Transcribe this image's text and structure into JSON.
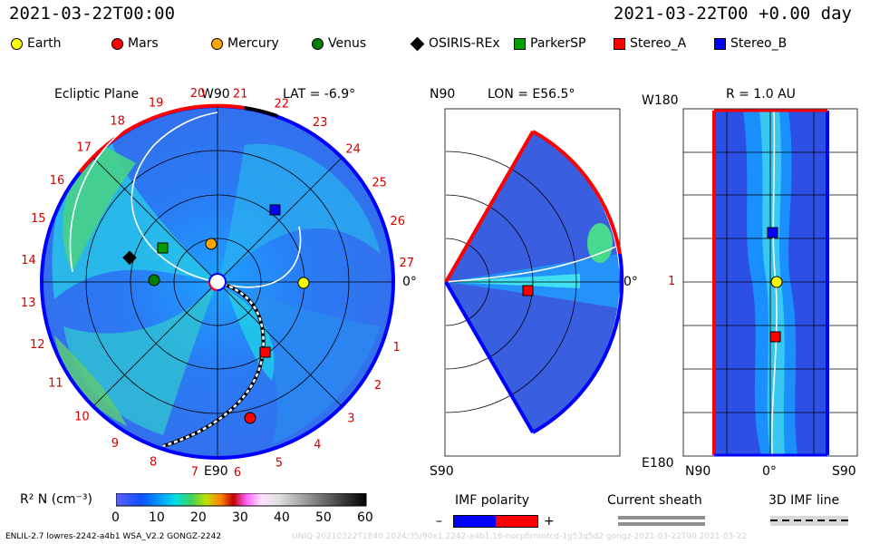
{
  "header": {
    "time_left": "2021-03-22T00:00",
    "time_right": "2021-03-22T00 +0.00 day"
  },
  "legend": [
    {
      "label": "Earth",
      "color": "#ffff00",
      "shape": "circle"
    },
    {
      "label": "Mars",
      "color": "#ff0000",
      "shape": "circle"
    },
    {
      "label": "Mercury",
      "color": "#ffa500",
      "shape": "circle"
    },
    {
      "label": "Venus",
      "color": "#008000",
      "shape": "circle"
    },
    {
      "label": "OSIRIS-REx",
      "color": "#000000",
      "shape": "diamond"
    },
    {
      "label": "ParkerSP",
      "color": "#00a000",
      "shape": "square"
    },
    {
      "label": "Stereo_A",
      "color": "#ff0000",
      "shape": "square"
    },
    {
      "label": "Stereo_B",
      "color": "#0000ff",
      "shape": "square"
    }
  ],
  "panels": {
    "ecliptic": {
      "title": "Ecliptic Plane",
      "top_label": "W90",
      "bottom_label": "E90",
      "lat": "LAT = -6.9°",
      "right_label": "0°",
      "carrington_numbers": [
        "20",
        "21",
        "22",
        "23",
        "24",
        "25",
        "26",
        "27",
        "0",
        "1",
        "2",
        "3",
        "4",
        "5",
        "6",
        "7",
        "8",
        "9",
        "10",
        "11",
        "12",
        "13",
        "14",
        "15",
        "16",
        "17",
        "18",
        "19"
      ]
    },
    "meridional": {
      "top_left": "N90",
      "lon": "LON = E56.5°",
      "bottom_left": "S90",
      "right_label": "0°"
    },
    "radial": {
      "title": "R = 1.0 AU",
      "top_left": "W180",
      "bottom_left": "E180",
      "mid_left": "1",
      "x_labels": [
        "N90",
        "0°",
        "S90"
      ]
    }
  },
  "colorbar": {
    "label": "R² N (cm⁻³)",
    "ticks": [
      "0",
      "10",
      "20",
      "30",
      "40",
      "50",
      "60"
    ]
  },
  "imf": {
    "title": "IMF polarity",
    "minus": "–",
    "plus": "+",
    "colors": [
      "#0000ff",
      "#ff0000"
    ]
  },
  "current_sheath": {
    "title": "Current sheath"
  },
  "imf_line": {
    "title": "3D IMF line"
  },
  "footer": {
    "left": "ENLIL-2.7 lowres-2242-a4b1 WSA_V2.2 GONGZ-2242",
    "right": "UNIQ-20210322T1840 2024/35/90x1.2242-a4b1.16-nocpfimmtcd-1g53q5d2 gongz-2021-03-22T00 2021-03-22"
  }
}
